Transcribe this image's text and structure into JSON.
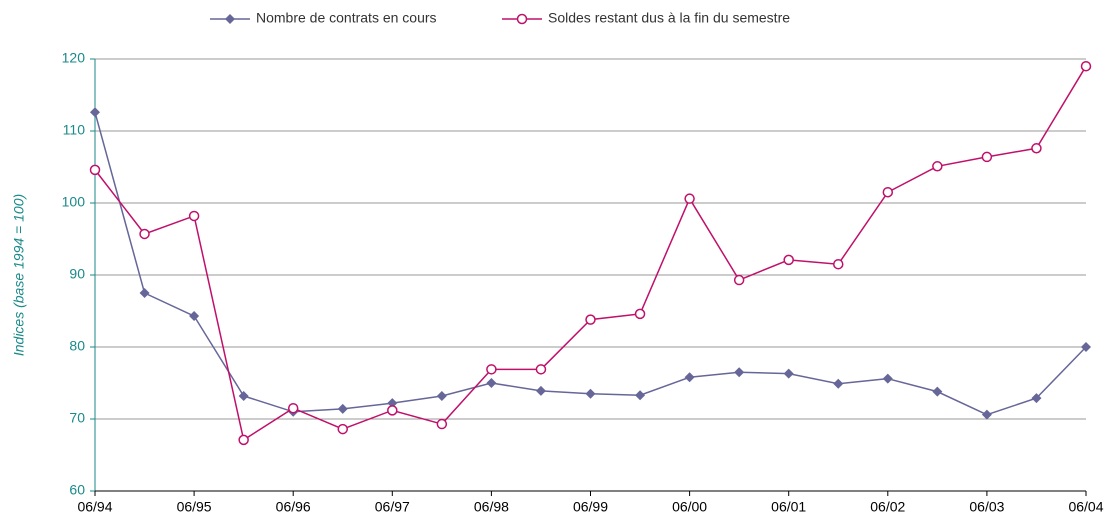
{
  "chart_data": {
    "type": "line",
    "y_label": "Indices (base 1994 = 100)",
    "categories": [
      "06/94",
      null,
      "06/95",
      null,
      "06/96",
      null,
      "06/97",
      null,
      "06/98",
      null,
      "06/99",
      null,
      "06/00",
      null,
      "06/01",
      null,
      "06/02",
      null,
      "06/03",
      null,
      "06/04"
    ],
    "series": [
      {
        "name": "Nombre de contrats en cours",
        "color": "#666699",
        "marker": "diamond",
        "values": [
          112.6,
          87.5,
          84.3,
          73.2,
          71.0,
          71.4,
          72.2,
          73.2,
          75.0,
          73.9,
          73.5,
          73.3,
          75.8,
          76.5,
          76.3,
          74.9,
          75.6,
          73.8,
          70.6,
          72.9,
          80.0
        ]
      },
      {
        "name": "Soldes restant dus à la fin du semestre",
        "color": "#c0106a",
        "marker": "circle",
        "values": [
          104.6,
          95.7,
          98.2,
          67.1,
          71.5,
          68.6,
          71.2,
          69.3,
          76.9,
          76.9,
          83.8,
          84.6,
          100.6,
          89.3,
          92.1,
          91.5,
          101.5,
          105.1,
          106.4,
          107.6,
          119.0
        ]
      }
    ],
    "ylim": [
      60,
      120
    ],
    "yticks": [
      60,
      70,
      80,
      90,
      100,
      110,
      120
    ],
    "grid": true,
    "legend": "top"
  }
}
